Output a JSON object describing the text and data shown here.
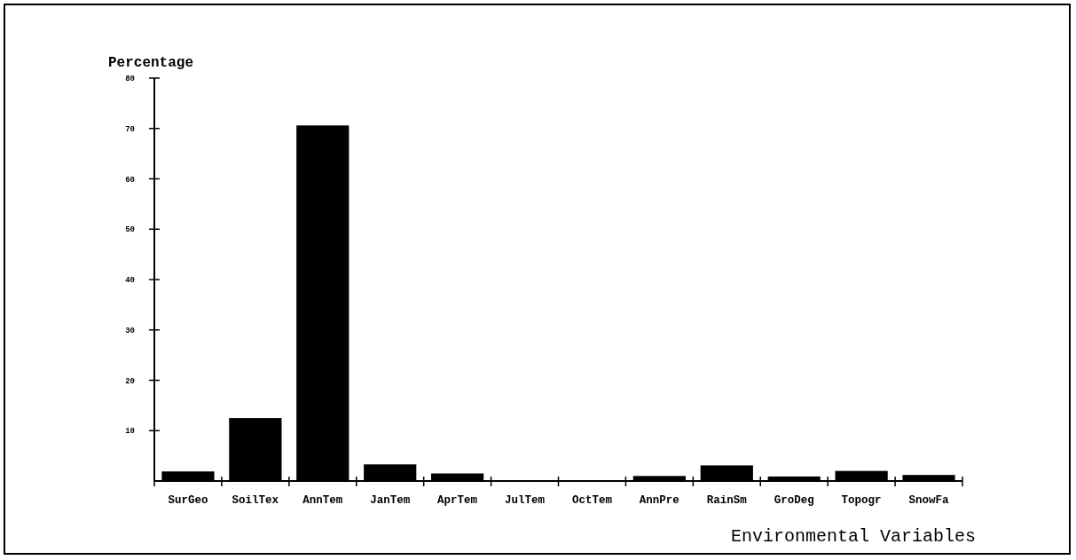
{
  "chart_data": {
    "type": "bar",
    "ylabel": "Percentage",
    "xlabel": "Environmental Variables",
    "categories": [
      "SurGeo",
      "SoilTex",
      "AnnTem",
      "JanTem",
      "AprTem",
      "JulTem",
      "OctTem",
      "AnnPre",
      "RainSm",
      "GroDeg",
      "Topogr",
      "SnowFa"
    ],
    "values": [
      1.9,
      12.5,
      70.6,
      3.3,
      1.5,
      0,
      0,
      1.0,
      3.1,
      0.9,
      2.0,
      1.2
    ],
    "color": "#000000",
    "ylim": [
      0,
      80
    ],
    "yticks": [
      10,
      20,
      30,
      40,
      50,
      60,
      70,
      80
    ],
    "grid": false
  }
}
